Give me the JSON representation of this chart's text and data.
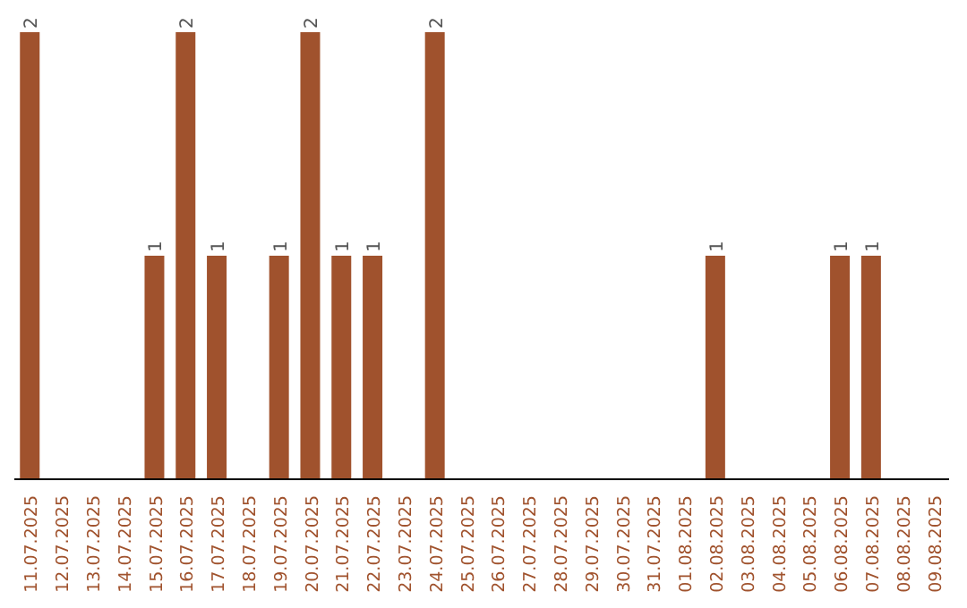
{
  "chart_data": {
    "type": "bar",
    "categories": [
      "11.07.2025",
      "12.07.2025",
      "13.07.2025",
      "14.07.2025",
      "15.07.2025",
      "16.07.2025",
      "17.07.2025",
      "18.07.2025",
      "19.07.2025",
      "20.07.2025",
      "21.07.2025",
      "22.07.2025",
      "23.07.2025",
      "24.07.2025",
      "25.07.2025",
      "26.07.2025",
      "27.07.2025",
      "28.07.2025",
      "29.07.2025",
      "30.07.2025",
      "31.07.2025",
      "01.08.2025",
      "02.08.2025",
      "03.08.2025",
      "04.08.2025",
      "05.08.2025",
      "06.08.2025",
      "07.08.2025",
      "08.08.2025",
      "09.08.2025"
    ],
    "values": [
      2,
      0,
      0,
      0,
      1,
      2,
      1,
      0,
      1,
      2,
      1,
      1,
      0,
      2,
      0,
      0,
      0,
      0,
      0,
      0,
      0,
      0,
      1,
      0,
      0,
      0,
      1,
      1,
      0,
      0
    ],
    "value_labels": [
      "2",
      null,
      null,
      null,
      "1",
      "2",
      "1",
      null,
      "1",
      "2",
      "1",
      "1",
      null,
      "2",
      null,
      null,
      null,
      null,
      null,
      null,
      null,
      null,
      "1",
      null,
      null,
      null,
      "1",
      "1",
      null,
      null
    ],
    "color": "#a0522d",
    "grid": false,
    "legend": false
  }
}
